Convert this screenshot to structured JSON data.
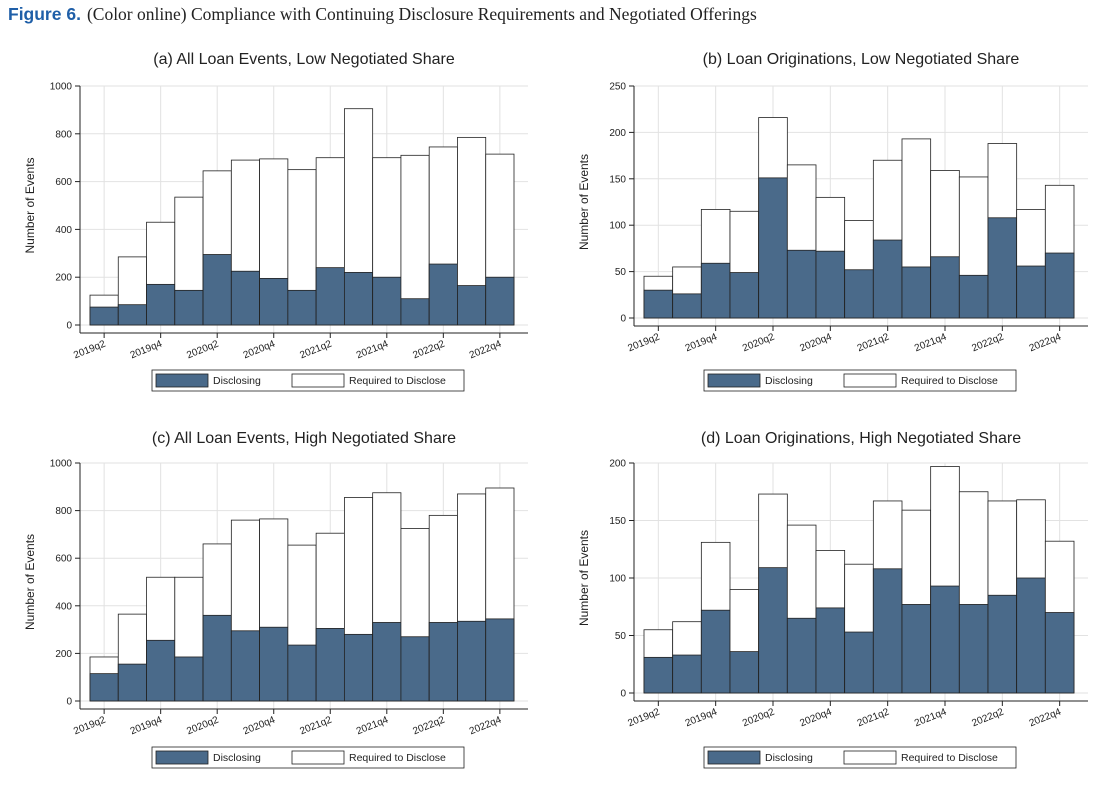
{
  "figure": {
    "label": "Figure 6.",
    "caption": "(Color online) Compliance with Continuing Disclosure Requirements and Negotiated Offerings"
  },
  "colors": {
    "disclosing": "#4a6a8a",
    "required": "#ffffff",
    "grid": "#e2e2e2",
    "stroke": "#222222"
  },
  "chart_data": [
    {
      "type": "bar",
      "title": "(a) All Loan Events, Low Negotiated Share",
      "ylabel": "Number of Events",
      "ylim": [
        0,
        1000
      ],
      "yticks": [
        0,
        200,
        400,
        600,
        800,
        1000
      ],
      "categories": [
        "2019q2",
        "2019q3",
        "2019q4",
        "2020q1",
        "2020q2",
        "2020q3",
        "2020q4",
        "2021q1",
        "2021q2",
        "2021q3",
        "2021q4",
        "2022q1",
        "2022q2",
        "2022q3",
        "2022q4"
      ],
      "xtick_labels": [
        "2019q2",
        "2019q4",
        "2020q2",
        "2020q4",
        "2021q2",
        "2021q4",
        "2022q2",
        "2022q4"
      ],
      "series": [
        {
          "name": "Disclosing",
          "values": [
            75,
            85,
            170,
            145,
            295,
            225,
            195,
            145,
            240,
            220,
            200,
            110,
            255,
            165,
            200
          ]
        },
        {
          "name": "Required to Disclose",
          "values": [
            125,
            285,
            430,
            535,
            645,
            690,
            695,
            650,
            700,
            905,
            700,
            710,
            745,
            785,
            715
          ]
        }
      ],
      "legend": [
        "Disclosing",
        "Required to Disclose"
      ]
    },
    {
      "type": "bar",
      "title": "(b) Loan Originations, Low Negotiated Share",
      "ylabel": "Number of Events",
      "ylim": [
        0,
        250
      ],
      "yticks": [
        0,
        50,
        100,
        150,
        200,
        250
      ],
      "categories": [
        "2019q2",
        "2019q3",
        "2019q4",
        "2020q1",
        "2020q2",
        "2020q3",
        "2020q4",
        "2021q1",
        "2021q2",
        "2021q3",
        "2021q4",
        "2022q1",
        "2022q2",
        "2022q3",
        "2022q4"
      ],
      "xtick_labels": [
        "2019q2",
        "2019q4",
        "2020q2",
        "2020q4",
        "2021q2",
        "2021q4",
        "2022q2",
        "2022q4"
      ],
      "series": [
        {
          "name": "Disclosing",
          "values": [
            30,
            26,
            59,
            49,
            151,
            73,
            72,
            52,
            84,
            55,
            66,
            46,
            108,
            56,
            70
          ]
        },
        {
          "name": "Required to Disclose",
          "values": [
            45,
            55,
            117,
            115,
            216,
            165,
            130,
            105,
            170,
            193,
            159,
            152,
            188,
            117,
            143
          ]
        }
      ],
      "legend": [
        "Disclosing",
        "Required to Disclose"
      ]
    },
    {
      "type": "bar",
      "title": "(c) All Loan Events, High Negotiated Share",
      "ylabel": "Number of Events",
      "ylim": [
        0,
        1000
      ],
      "yticks": [
        0,
        200,
        400,
        600,
        800,
        1000
      ],
      "categories": [
        "2019q2",
        "2019q3",
        "2019q4",
        "2020q1",
        "2020q2",
        "2020q3",
        "2020q4",
        "2021q1",
        "2021q2",
        "2021q3",
        "2021q4",
        "2022q1",
        "2022q2",
        "2022q3",
        "2022q4"
      ],
      "xtick_labels": [
        "2019q2",
        "2019q4",
        "2020q2",
        "2020q4",
        "2021q2",
        "2021q4",
        "2022q2",
        "2022q4"
      ],
      "series": [
        {
          "name": "Disclosing",
          "values": [
            115,
            155,
            255,
            185,
            360,
            295,
            310,
            235,
            305,
            280,
            330,
            270,
            330,
            335,
            345
          ]
        },
        {
          "name": "Required to Disclose",
          "values": [
            185,
            365,
            520,
            520,
            660,
            760,
            765,
            655,
            705,
            855,
            875,
            725,
            780,
            870,
            895
          ]
        }
      ],
      "legend": [
        "Disclosing",
        "Required to Disclose"
      ]
    },
    {
      "type": "bar",
      "title": "(d) Loan Originations, High Negotiated Share",
      "ylabel": "Number of Events",
      "ylim": [
        0,
        200
      ],
      "yticks": [
        0,
        50,
        100,
        150,
        200
      ],
      "categories": [
        "2019q2",
        "2019q3",
        "2019q4",
        "2020q1",
        "2020q2",
        "2020q3",
        "2020q4",
        "2021q1",
        "2021q2",
        "2021q3",
        "2021q4",
        "2022q1",
        "2022q2",
        "2022q3",
        "2022q4"
      ],
      "xtick_labels": [
        "2019q2",
        "2019q4",
        "2020q2",
        "2020q4",
        "2021q2",
        "2021q4",
        "2022q2",
        "2022q4"
      ],
      "series": [
        {
          "name": "Disclosing",
          "values": [
            31,
            33,
            72,
            36,
            109,
            65,
            74,
            53,
            108,
            77,
            93,
            77,
            85,
            100,
            70
          ]
        },
        {
          "name": "Required to Disclose",
          "values": [
            55,
            62,
            131,
            90,
            173,
            146,
            124,
            112,
            167,
            159,
            197,
            175,
            167,
            168,
            132
          ]
        }
      ],
      "legend": [
        "Disclosing",
        "Required to Disclose"
      ]
    }
  ]
}
